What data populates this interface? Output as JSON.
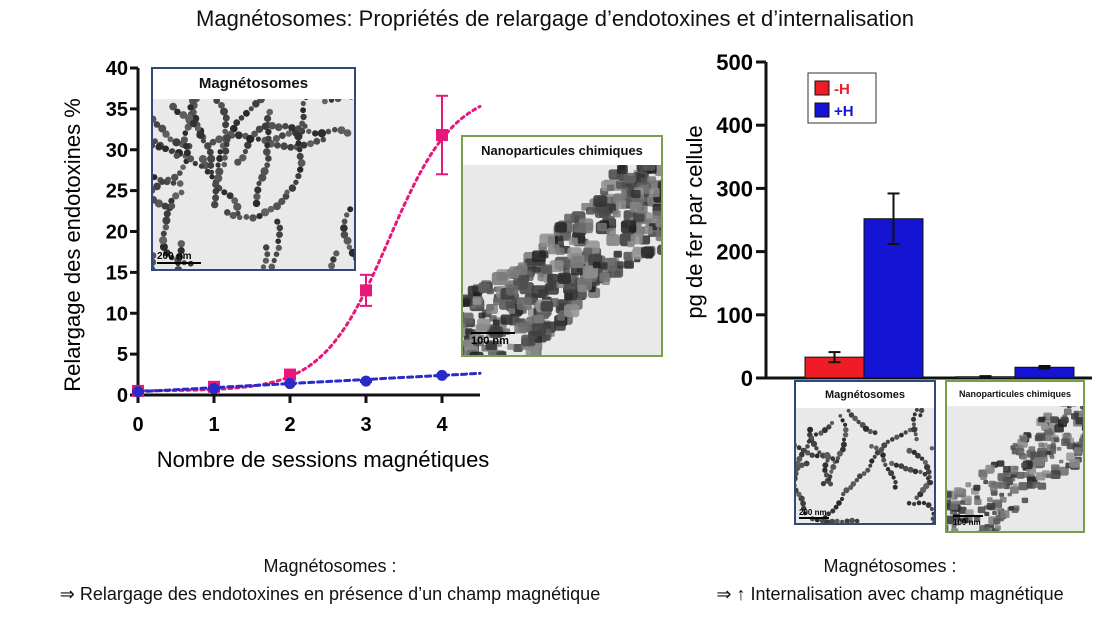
{
  "title": "Magnétosomes: Propriétés de relargage d’endotoxines et d’internalisation",
  "chart_data": [
    {
      "type": "line",
      "xlabel": "Nombre de sessions magnétiques",
      "ylabel": "Relargage des endotoxines %",
      "xlim": [
        0,
        4.5
      ],
      "ylim": [
        0,
        40
      ],
      "xticks": [
        "0",
        "1",
        "2",
        "3",
        "4"
      ],
      "yticks": [
        "0",
        "5",
        "10",
        "15",
        "20",
        "25",
        "30",
        "35",
        "40"
      ],
      "x": [
        0,
        1,
        2,
        3,
        4
      ],
      "series": [
        {
          "color": "#e8177a",
          "marker": "square",
          "values": [
            0.5,
            1.0,
            2.5,
            12.8,
            31.8
          ],
          "errors": [
            0.3,
            0.4,
            0.5,
            1.9,
            4.8
          ]
        },
        {
          "color": "#2a2ac9",
          "marker": "circle",
          "values": [
            0.4,
            0.8,
            1.4,
            1.7,
            2.4
          ],
          "errors": [
            0.1,
            0.1,
            0.1,
            0.1,
            0.1
          ]
        }
      ],
      "grid": false
    },
    {
      "type": "bar",
      "ylabel": "pg de fer par cellule",
      "ylim": [
        0,
        500
      ],
      "yticks": [
        "0",
        "100",
        "200",
        "300",
        "400",
        "500"
      ],
      "categories": [
        "Magnétosomes",
        "Nanoparticules chimiques"
      ],
      "series": [
        {
          "name": "-H",
          "color": "#ee1c24",
          "values": [
            33,
            2
          ],
          "errors": [
            8,
            1
          ]
        },
        {
          "name": "+H",
          "color": "#1414d2",
          "values": [
            252,
            17
          ],
          "errors": [
            40,
            2
          ]
        }
      ],
      "legend": "top-left",
      "grid": false
    }
  ],
  "insets": {
    "magnetosomes": {
      "label": "Magnétosomes",
      "scale": "200 nm",
      "border": "#2f4a7a"
    },
    "chemical": {
      "label": "Nanoparticules chimiques",
      "scale": "100 nm",
      "border": "#77a04a"
    }
  },
  "captions": {
    "left": {
      "line1": "Magnétosomes :",
      "line2": "⇒ Relargage des endotoxines en présence d’un champ magnétique"
    },
    "right": {
      "line1": "Magnétosomes :",
      "line2": "⇒ ↑ Internalisation avec champ magnétique"
    }
  }
}
